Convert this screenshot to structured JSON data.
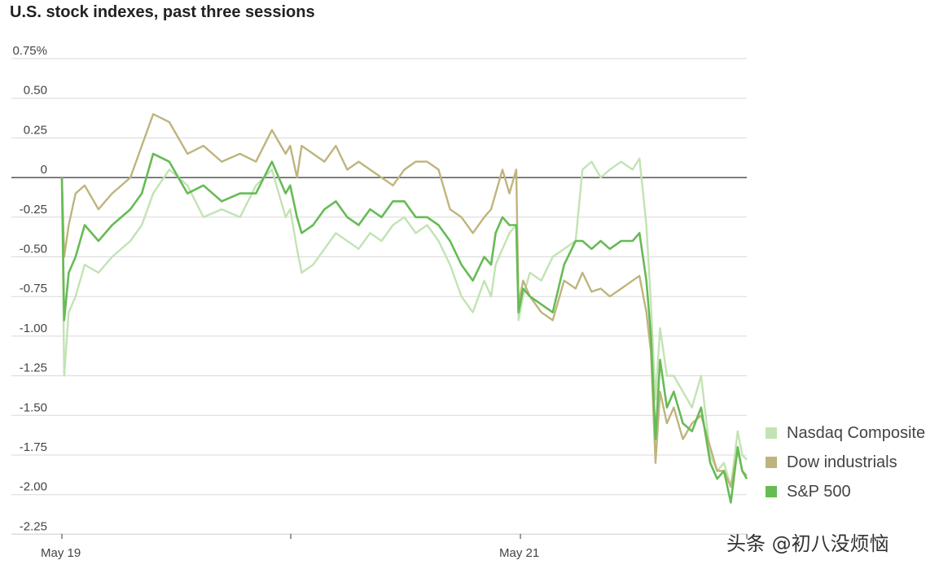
{
  "chart_data": {
    "type": "line",
    "title": "U.S. stock indexes, past three sessions",
    "xlabel": "",
    "ylabel": "",
    "ylim": [
      -2.35,
      0.75
    ],
    "y_ticks": [
      0.75,
      0.5,
      0.25,
      0,
      -0.25,
      -0.5,
      -0.75,
      -1.0,
      -1.25,
      -1.5,
      -1.75,
      -2.0,
      -2.25
    ],
    "y_tick_labels": [
      "0.75%",
      "0.50",
      "0.25",
      "0",
      "-0.25",
      "-0.50",
      "-0.75",
      "-1.00",
      "-1.25",
      "-1.50",
      "-1.75",
      "-2.00",
      "-2.25"
    ],
    "x_range": [
      0,
      3
    ],
    "x_ticks": [
      0,
      1,
      2,
      3
    ],
    "x_tick_labels": [
      "May 19",
      "",
      "May 21",
      ""
    ],
    "grid": true,
    "zero_line": true,
    "legend_position": "bottom-right",
    "series": [
      {
        "name": "Nasdaq Composite",
        "color": "#c2e3b3",
        "x": [
          0,
          0.01,
          0.03,
          0.06,
          0.1,
          0.16,
          0.22,
          0.3,
          0.35,
          0.4,
          0.47,
          0.55,
          0.62,
          0.7,
          0.78,
          0.85,
          0.92,
          0.98,
          1.0,
          1.03,
          1.05,
          1.1,
          1.15,
          1.2,
          1.25,
          1.3,
          1.35,
          1.4,
          1.45,
          1.5,
          1.55,
          1.6,
          1.65,
          1.7,
          1.75,
          1.8,
          1.85,
          1.88,
          1.9,
          1.93,
          1.96,
          1.99,
          2.0,
          2.02,
          2.05,
          2.1,
          2.15,
          2.2,
          2.25,
          2.28,
          2.32,
          2.36,
          2.4,
          2.45,
          2.5,
          2.53,
          2.56,
          2.58,
          2.6,
          2.62,
          2.65,
          2.68,
          2.72,
          2.76,
          2.8,
          2.84,
          2.87,
          2.9,
          2.93,
          2.96,
          2.98,
          3.0
        ],
        "y": [
          0.0,
          -1.25,
          -0.85,
          -0.75,
          -0.55,
          -0.6,
          -0.5,
          -0.4,
          -0.3,
          -0.1,
          0.05,
          -0.05,
          -0.25,
          -0.2,
          -0.25,
          -0.05,
          0.05,
          -0.25,
          -0.2,
          -0.45,
          -0.6,
          -0.55,
          -0.45,
          -0.35,
          -0.4,
          -0.45,
          -0.35,
          -0.4,
          -0.3,
          -0.25,
          -0.35,
          -0.3,
          -0.4,
          -0.55,
          -0.75,
          -0.85,
          -0.65,
          -0.75,
          -0.55,
          -0.45,
          -0.35,
          -0.3,
          -0.9,
          -0.75,
          -0.6,
          -0.65,
          -0.5,
          -0.45,
          -0.4,
          0.05,
          0.1,
          0.0,
          0.05,
          0.1,
          0.05,
          0.12,
          -0.3,
          -0.8,
          -1.4,
          -0.95,
          -1.25,
          -1.25,
          -1.35,
          -1.45,
          -1.25,
          -1.75,
          -1.85,
          -1.8,
          -1.95,
          -1.6,
          -1.75,
          -1.78
        ]
      },
      {
        "name": "Dow industrials",
        "color": "#bfb47e",
        "x": [
          0,
          0.01,
          0.03,
          0.06,
          0.1,
          0.16,
          0.22,
          0.3,
          0.35,
          0.4,
          0.47,
          0.55,
          0.62,
          0.7,
          0.78,
          0.85,
          0.92,
          0.98,
          1.0,
          1.03,
          1.05,
          1.1,
          1.15,
          1.2,
          1.25,
          1.3,
          1.35,
          1.4,
          1.45,
          1.5,
          1.55,
          1.6,
          1.65,
          1.7,
          1.75,
          1.8,
          1.85,
          1.88,
          1.9,
          1.93,
          1.96,
          1.99,
          2.0,
          2.02,
          2.05,
          2.1,
          2.15,
          2.2,
          2.25,
          2.28,
          2.32,
          2.36,
          2.4,
          2.45,
          2.5,
          2.53,
          2.56,
          2.58,
          2.6,
          2.62,
          2.65,
          2.68,
          2.72,
          2.76,
          2.8,
          2.84,
          2.87,
          2.9,
          2.93,
          2.96,
          2.98,
          3.0
        ],
        "y": [
          0.0,
          -0.5,
          -0.3,
          -0.1,
          -0.05,
          -0.2,
          -0.1,
          0.0,
          0.2,
          0.4,
          0.35,
          0.15,
          0.2,
          0.1,
          0.15,
          0.1,
          0.3,
          0.15,
          0.2,
          0.0,
          0.2,
          0.15,
          0.1,
          0.2,
          0.05,
          0.1,
          0.05,
          0.0,
          -0.05,
          0.05,
          0.1,
          0.1,
          0.05,
          -0.2,
          -0.25,
          -0.35,
          -0.25,
          -0.2,
          -0.1,
          0.05,
          -0.1,
          0.05,
          -0.8,
          -0.65,
          -0.75,
          -0.85,
          -0.9,
          -0.65,
          -0.7,
          -0.6,
          -0.72,
          -0.7,
          -0.75,
          -0.7,
          -0.65,
          -0.62,
          -0.85,
          -1.1,
          -1.8,
          -1.35,
          -1.55,
          -1.45,
          -1.65,
          -1.55,
          -1.5,
          -1.7,
          -1.85,
          -1.85,
          -1.95,
          -1.72,
          -1.85,
          -1.88
        ]
      },
      {
        "name": "S&P 500",
        "color": "#66bb55",
        "x": [
          0,
          0.01,
          0.03,
          0.06,
          0.1,
          0.16,
          0.22,
          0.3,
          0.35,
          0.4,
          0.47,
          0.55,
          0.62,
          0.7,
          0.78,
          0.85,
          0.92,
          0.98,
          1.0,
          1.03,
          1.05,
          1.1,
          1.15,
          1.2,
          1.25,
          1.3,
          1.35,
          1.4,
          1.45,
          1.5,
          1.55,
          1.6,
          1.65,
          1.7,
          1.75,
          1.8,
          1.85,
          1.88,
          1.9,
          1.93,
          1.96,
          1.99,
          2.0,
          2.02,
          2.05,
          2.1,
          2.15,
          2.2,
          2.25,
          2.28,
          2.32,
          2.36,
          2.4,
          2.45,
          2.5,
          2.53,
          2.56,
          2.58,
          2.6,
          2.62,
          2.65,
          2.68,
          2.72,
          2.76,
          2.8,
          2.84,
          2.87,
          2.9,
          2.93,
          2.96,
          2.98,
          3.0
        ],
        "y": [
          0.0,
          -0.9,
          -0.6,
          -0.5,
          -0.3,
          -0.4,
          -0.3,
          -0.2,
          -0.1,
          0.15,
          0.1,
          -0.1,
          -0.05,
          -0.15,
          -0.1,
          -0.1,
          0.1,
          -0.1,
          -0.05,
          -0.25,
          -0.35,
          -0.3,
          -0.2,
          -0.15,
          -0.25,
          -0.3,
          -0.2,
          -0.25,
          -0.15,
          -0.15,
          -0.25,
          -0.25,
          -0.3,
          -0.4,
          -0.55,
          -0.65,
          -0.5,
          -0.55,
          -0.35,
          -0.25,
          -0.3,
          -0.3,
          -0.85,
          -0.7,
          -0.75,
          -0.8,
          -0.85,
          -0.55,
          -0.4,
          -0.4,
          -0.45,
          -0.4,
          -0.45,
          -0.4,
          -0.4,
          -0.35,
          -0.65,
          -1.0,
          -1.65,
          -1.15,
          -1.45,
          -1.35,
          -1.55,
          -1.6,
          -1.45,
          -1.8,
          -1.9,
          -1.85,
          -2.05,
          -1.7,
          -1.85,
          -1.9
        ]
      }
    ]
  },
  "watermark": "头条 @初八没烦恼"
}
